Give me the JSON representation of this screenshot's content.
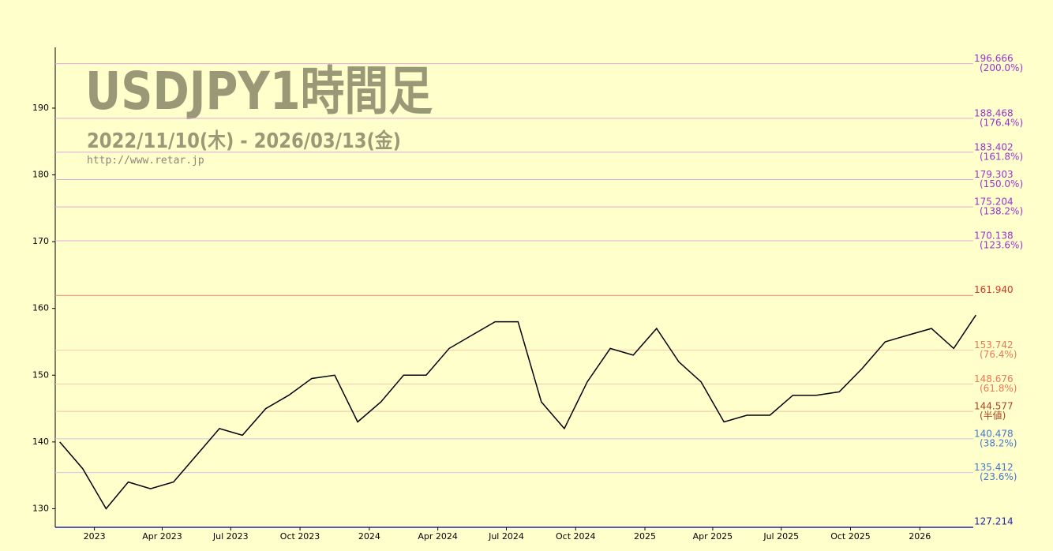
{
  "chart_data": {
    "type": "line",
    "title": "USDJPY1時間足",
    "subtitle": "2022/11/10(木) - 2026/03/13(金)",
    "url": "http://www.retar.jp",
    "xlim": [
      "2022-11-10",
      "2026-03-13"
    ],
    "xticks": [
      {
        "value": "2023-01",
        "label": "2023"
      },
      {
        "value": "2023-04",
        "label": "Apr 2023"
      },
      {
        "value": "2023-07",
        "label": "Jul 2023"
      },
      {
        "value": "2023-10",
        "label": "Oct 2023"
      },
      {
        "value": "2024-01",
        "label": "2024"
      },
      {
        "value": "2024-04",
        "label": "Apr 2024"
      },
      {
        "value": "2024-07",
        "label": "Jul 2024"
      },
      {
        "value": "2024-10",
        "label": "Oct 2024"
      },
      {
        "value": "2025-01",
        "label": "2025"
      },
      {
        "value": "2025-04",
        "label": "Apr 2025"
      },
      {
        "value": "2025-07",
        "label": "Jul 2025"
      },
      {
        "value": "2025-10",
        "label": "Oct 2025"
      },
      {
        "value": "2026-01",
        "label": "2026"
      }
    ],
    "ylim": [
      127.214,
      199.1
    ],
    "yticks": [
      130,
      140,
      150,
      160,
      170,
      180,
      190
    ],
    "x": [
      "2022-11",
      "2022-12",
      "2023-01",
      "2023-02",
      "2023-03",
      "2023-04",
      "2023-05",
      "2023-06",
      "2023-07",
      "2023-08",
      "2023-09",
      "2023-10",
      "2023-11",
      "2023-12",
      "2024-01",
      "2024-02",
      "2024-03",
      "2024-04",
      "2024-05",
      "2024-06",
      "2024-07",
      "2024-08",
      "2024-09",
      "2024-10",
      "2024-11",
      "2024-12",
      "2025-01",
      "2025-02",
      "2025-03",
      "2025-04",
      "2025-05",
      "2025-06",
      "2025-07",
      "2025-08",
      "2025-09",
      "2025-10",
      "2025-11",
      "2025-12",
      "2026-01",
      "2026-02",
      "2026-03"
    ],
    "values": [
      140,
      136,
      130,
      134,
      133,
      134,
      138,
      142,
      141,
      145,
      147,
      149.5,
      150,
      143,
      146,
      150,
      150,
      154,
      156,
      158,
      158,
      146,
      142,
      149,
      154,
      153,
      157,
      152,
      149,
      143,
      144,
      144,
      147,
      147,
      147.5,
      151,
      155,
      156,
      157,
      154,
      159
    ],
    "color": "#000000",
    "levels": [
      {
        "value": 196.666,
        "price_label": "196.666",
        "pct_label": "(200.0%)",
        "color": "#9933cc",
        "line_color": "#e0a8e0"
      },
      {
        "value": 188.468,
        "price_label": "188.468",
        "pct_label": "(176.4%)",
        "color": "#9933cc",
        "line_color": "#e0a8e0"
      },
      {
        "value": 183.402,
        "price_label": "183.402",
        "pct_label": "(161.8%)",
        "color": "#9933cc",
        "line_color": "#e0a8e0"
      },
      {
        "value": 179.303,
        "price_label": "179.303",
        "pct_label": "(150.0%)",
        "color": "#9933cc",
        "line_color": "#e0a8e0"
      },
      {
        "value": 175.204,
        "price_label": "175.204",
        "pct_label": "(138.2%)",
        "color": "#9933cc",
        "line_color": "#e0a8e0"
      },
      {
        "value": 170.138,
        "price_label": "170.138",
        "pct_label": "(123.6%)",
        "color": "#9933cc",
        "line_color": "#e0a8e0"
      },
      {
        "value": 161.94,
        "price_label": "161.940",
        "color": "#dd3322",
        "line_color": "#f08070"
      },
      {
        "value": 153.742,
        "price_label": "153.742",
        "pct_label": "(76.4%)",
        "color": "#ee7755",
        "line_color": "#f8c8a8"
      },
      {
        "value": 148.676,
        "price_label": "148.676",
        "pct_label": "(61.8%)",
        "color": "#ee7755",
        "line_color": "#f8c8a8"
      },
      {
        "value": 144.577,
        "price_label": "144.577",
        "pct_label": "(半値)",
        "color": "#aa4422",
        "line_color": "#f0c0a0"
      },
      {
        "value": 140.478,
        "price_label": "140.478",
        "pct_label": "(38.2%)",
        "color": "#4477cc",
        "line_color": "#c8c8f0"
      },
      {
        "value": 135.412,
        "price_label": "135.412",
        "pct_label": "(23.6%)",
        "color": "#4477cc",
        "line_color": "#c8c8f0"
      },
      {
        "value": 127.214,
        "price_label": "127.214",
        "color": "#2222aa",
        "line_color": "#2222aa"
      }
    ]
  }
}
